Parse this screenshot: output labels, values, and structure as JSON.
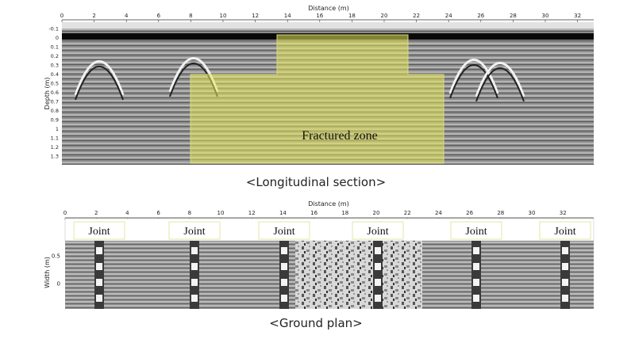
{
  "longitudinal": {
    "x_axis_title": "Distance (m)",
    "x_ticks": [
      "0",
      "2",
      "4",
      "6",
      "8",
      "10",
      "12",
      "14",
      "16",
      "18",
      "20",
      "22",
      "24",
      "26",
      "28",
      "30",
      "32"
    ],
    "y_axis_title": "Depth (m)",
    "y_ticks": [
      "-0.1",
      "0",
      "0.1",
      "0.2",
      "0.3",
      "0.4",
      "0.5",
      "0.6",
      "0.7",
      "0.8",
      "0.9",
      "1",
      "1.1",
      "1.2",
      "1.3"
    ],
    "zone_label": "Fractured zone",
    "caption": "<Longitudinal section>"
  },
  "ground_plan": {
    "x_axis_title": "Distance (m)",
    "x_ticks": [
      "0",
      "2",
      "4",
      "6",
      "8",
      "10",
      "12",
      "14",
      "16",
      "18",
      "20",
      "22",
      "24",
      "26",
      "28",
      "30",
      "32"
    ],
    "y_axis_title": "Width (m)",
    "y_ticks": [
      "0.5",
      "0"
    ],
    "joint_labels": [
      "Joint",
      "Joint",
      "Joint",
      "Joint",
      "Joint",
      "Joint"
    ],
    "caption": "<Ground plan>"
  },
  "colors": {
    "overlay": "#e8e85a",
    "overlay_border": "#d8d880",
    "radar_gray": "#8a8a8a"
  }
}
